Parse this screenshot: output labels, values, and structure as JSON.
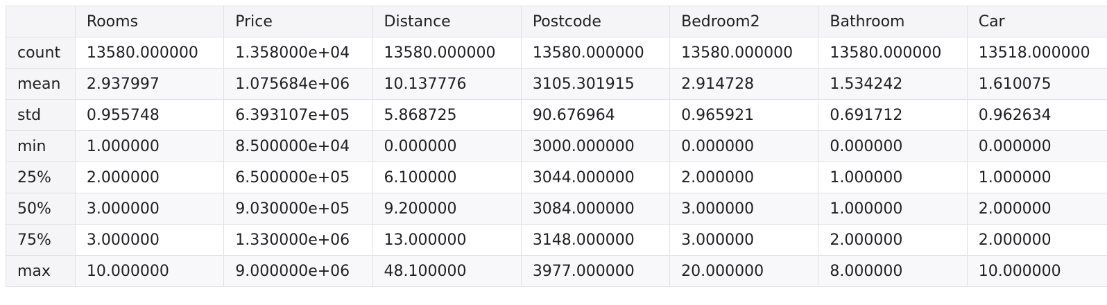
{
  "table": {
    "index_header": "",
    "columns": [
      "Rooms",
      "Price",
      "Distance",
      "Postcode",
      "Bedroom2",
      "Bathroom",
      "Car"
    ],
    "rows": [
      {
        "label": "count",
        "values": [
          "13580.000000",
          "1.358000e+04",
          "13580.000000",
          "13580.000000",
          "13580.000000",
          "13580.000000",
          "13518.000000"
        ]
      },
      {
        "label": "mean",
        "values": [
          "2.937997",
          "1.075684e+06",
          "10.137776",
          "3105.301915",
          "2.914728",
          "1.534242",
          "1.610075"
        ]
      },
      {
        "label": "std",
        "values": [
          "0.955748",
          "6.393107e+05",
          "5.868725",
          "90.676964",
          "0.965921",
          "0.691712",
          "0.962634"
        ]
      },
      {
        "label": "min",
        "values": [
          "1.000000",
          "8.500000e+04",
          "0.000000",
          "3000.000000",
          "0.000000",
          "0.000000",
          "0.000000"
        ]
      },
      {
        "label": "25%",
        "values": [
          "2.000000",
          "6.500000e+05",
          "6.100000",
          "3044.000000",
          "2.000000",
          "1.000000",
          "1.000000"
        ]
      },
      {
        "label": "50%",
        "values": [
          "3.000000",
          "9.030000e+05",
          "9.200000",
          "3084.000000",
          "3.000000",
          "1.000000",
          "2.000000"
        ]
      },
      {
        "label": "75%",
        "values": [
          "3.000000",
          "1.330000e+06",
          "13.000000",
          "3148.000000",
          "3.000000",
          "2.000000",
          "2.000000"
        ]
      },
      {
        "label": "max",
        "values": [
          "10.000000",
          "9.000000e+06",
          "48.100000",
          "3977.000000",
          "20.000000",
          "8.000000",
          "10.000000"
        ]
      }
    ]
  }
}
